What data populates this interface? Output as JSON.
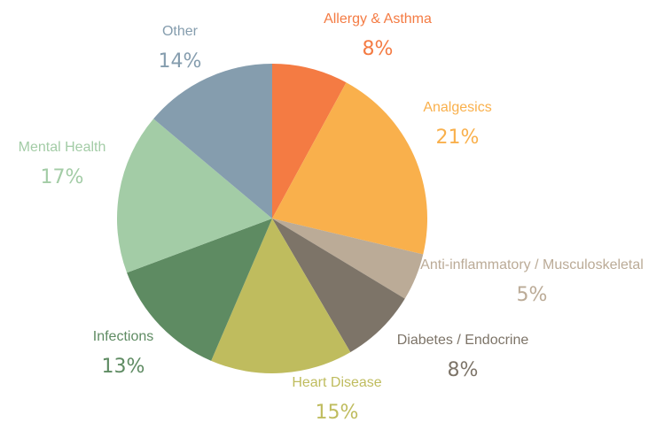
{
  "chart_data": {
    "type": "pie",
    "categories": [
      "Allergy & Asthma",
      "Analgesics",
      "Anti-inflammatory / Musculoskeletal",
      "Diabetes / Endocrine",
      "Heart Disease",
      "Infections",
      "Mental Health",
      "Other"
    ],
    "values": [
      8,
      21,
      5,
      8,
      15,
      13,
      17,
      14
    ],
    "value_labels": [
      "8%",
      "21%",
      "5%",
      "8%",
      "15%",
      "13%",
      "17%",
      "14%"
    ],
    "colors": [
      "#f47b43",
      "#f9b04c",
      "#bbab97",
      "#7d7468",
      "#bfbc5e",
      "#5e8b62",
      "#a3cca6",
      "#859dae"
    ]
  }
}
